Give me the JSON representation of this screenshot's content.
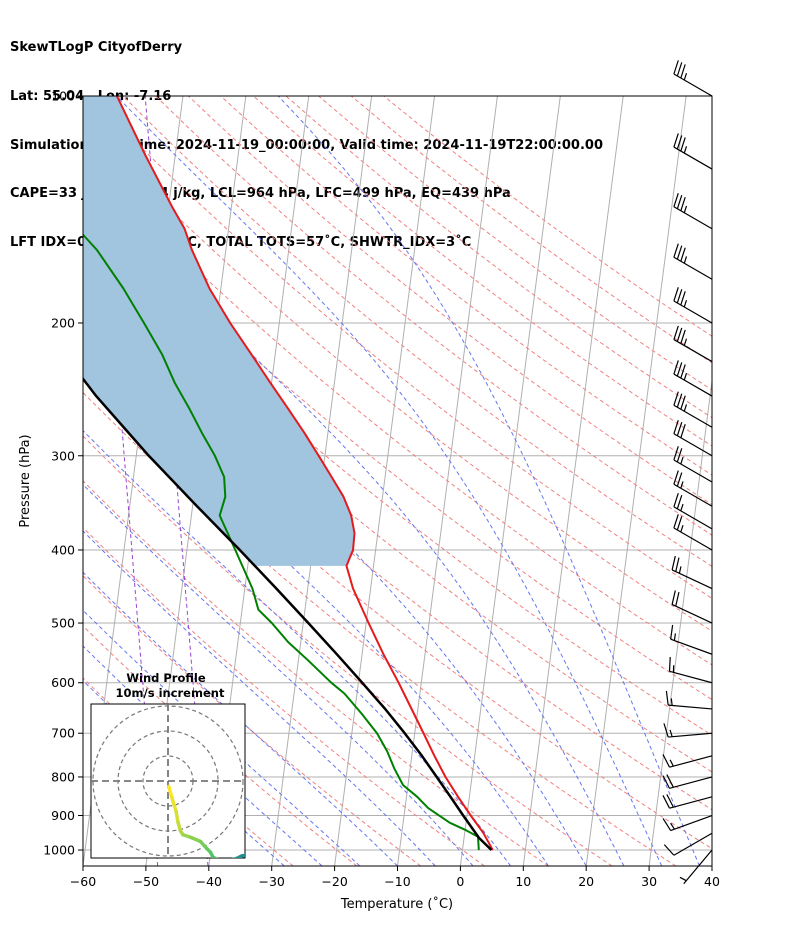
{
  "header": {
    "line1": "SkewTLogP CityofDerry",
    "line2": "Lat: 55.04   Lon: -7.16",
    "line3": "Simulation start time: 2024-11-19_00:00:00, Valid time: 2024-11-19T22:00:00.00",
    "line4": "CAPE=33 j/kg, CIN=-4 j/kg, LCL=964 hPa, LFC=499 hPa, EQ=439 hPa",
    "line5": "LFT IDX=0˚C, K IDX=15˚C, TOTAL TOTS=57˚C, SHWTR_IDX=3˚C"
  },
  "chart_data": {
    "type": "skewt",
    "xlabel": "Temperature (˚C)",
    "ylabel": "Pressure (hPa)",
    "xlim": [
      -60,
      40
    ],
    "ylim": [
      1050,
      100
    ],
    "log_pressure": true,
    "grid": true,
    "x_ticks": [
      "−60",
      "−50",
      "−40",
      "−30",
      "−20",
      "−10",
      "0",
      "10",
      "20",
      "30",
      "40"
    ],
    "y_ticks": [
      "1000",
      "900",
      "800",
      "700",
      "600",
      "500",
      "400",
      "300",
      "200",
      "100"
    ],
    "temperature": {
      "color": "#e41a1c",
      "points": [
        [
          1000,
          4.8
        ],
        [
          950,
          3
        ],
        [
          900,
          0.6
        ],
        [
          850,
          -1.8
        ],
        [
          800,
          -4.2
        ],
        [
          750,
          -6.4
        ],
        [
          700,
          -8.6
        ],
        [
          650,
          -11
        ],
        [
          600,
          -13.6
        ],
        [
          550,
          -16.6
        ],
        [
          500,
          -19.6
        ],
        [
          450,
          -22.8
        ],
        [
          420,
          -24.3
        ],
        [
          400,
          -23.6
        ],
        [
          380,
          -23.7
        ],
        [
          360,
          -24.6
        ],
        [
          340,
          -26.2
        ],
        [
          320,
          -28.5
        ],
        [
          300,
          -31
        ],
        [
          280,
          -33.7
        ],
        [
          260,
          -36.8
        ],
        [
          240,
          -40.2
        ],
        [
          220,
          -43.8
        ],
        [
          200,
          -47.8
        ],
        [
          180,
          -51.8
        ],
        [
          160,
          -55.4
        ],
        [
          150,
          -57
        ],
        [
          140,
          -59.5
        ],
        [
          120,
          -64.7
        ],
        [
          100,
          -70.5
        ]
      ]
    },
    "dewpoint": {
      "color": "#008000",
      "points": [
        [
          1000,
          2.6
        ],
        [
          960,
          2.2
        ],
        [
          940,
          0
        ],
        [
          920,
          -2.6
        ],
        [
          880,
          -6.3
        ],
        [
          850,
          -8.3
        ],
        [
          820,
          -10.8
        ],
        [
          780,
          -12.5
        ],
        [
          740,
          -14
        ],
        [
          700,
          -16
        ],
        [
          660,
          -18.8
        ],
        [
          620,
          -22
        ],
        [
          600,
          -24.3
        ],
        [
          560,
          -28.5
        ],
        [
          530,
          -32
        ],
        [
          500,
          -35
        ],
        [
          480,
          -37.4
        ],
        [
          450,
          -38.8
        ],
        [
          400,
          -42.3
        ],
        [
          360,
          -45.5
        ],
        [
          340,
          -45
        ],
        [
          320,
          -45.6
        ],
        [
          300,
          -47.5
        ],
        [
          280,
          -50
        ],
        [
          260,
          -52.5
        ],
        [
          240,
          -55.4
        ],
        [
          220,
          -58
        ],
        [
          200,
          -61.5
        ],
        [
          180,
          -65.5
        ],
        [
          160,
          -70.5
        ],
        [
          150,
          -74
        ],
        [
          140,
          -75
        ],
        [
          120,
          -76.5
        ],
        [
          100,
          -78.5
        ]
      ]
    },
    "parcel": {
      "color": "#000000",
      "points": [
        [
          1000,
          4.6
        ],
        [
          964,
          2.4
        ],
        [
          900,
          -0.6
        ],
        [
          850,
          -3
        ],
        [
          800,
          -5.6
        ],
        [
          750,
          -8.4
        ],
        [
          700,
          -11.6
        ],
        [
          650,
          -15.2
        ],
        [
          600,
          -19.4
        ],
        [
          550,
          -24
        ],
        [
          500,
          -29.2
        ],
        [
          450,
          -35
        ],
        [
          400,
          -41.6
        ],
        [
          350,
          -49.3
        ],
        [
          300,
          -58
        ],
        [
          250,
          -67.6
        ],
        [
          200,
          -78
        ],
        [
          150,
          -89.5
        ],
        [
          100,
          -104
        ]
      ]
    },
    "cape_fill_color": "#a1c4df",
    "wind_barbs": {
      "pressures": [
        100,
        125,
        150,
        175,
        200,
        225,
        250,
        275,
        300,
        325,
        350,
        375,
        400,
        450,
        500,
        550,
        600,
        650,
        700,
        750,
        800,
        850,
        900,
        950,
        1000
      ],
      "speed_kt": [
        35,
        35,
        35,
        35,
        35,
        35,
        35,
        35,
        30,
        25,
        25,
        25,
        25,
        25,
        20,
        15,
        15,
        15,
        15,
        15,
        20,
        20,
        15,
        10,
        5
      ],
      "dir_deg": [
        300,
        300,
        300,
        300,
        300,
        300,
        300,
        300,
        300,
        300,
        300,
        300,
        300,
        295,
        295,
        290,
        285,
        275,
        265,
        255,
        255,
        255,
        250,
        240,
        220
      ]
    },
    "inset": {
      "title": "Wind Profile",
      "subtitle": "10m/s increment",
      "ring_step": 10,
      "hodograph": [
        [
          0.3,
          -2.2
        ],
        [
          1.5,
          -6.5
        ],
        [
          3.2,
          -12
        ],
        [
          4,
          -16.5
        ],
        [
          5,
          -20
        ],
        [
          6,
          -21.5
        ],
        [
          9,
          -22.5
        ],
        [
          13,
          -24.2
        ],
        [
          15.5,
          -27
        ],
        [
          17,
          -28.5
        ],
        [
          18,
          -30.5
        ],
        [
          20,
          -31.5
        ],
        [
          20.7,
          -33
        ],
        [
          22,
          -34
        ],
        [
          23.5,
          -33
        ],
        [
          25.5,
          -31.5
        ],
        [
          27.5,
          -31
        ],
        [
          29.5,
          -30
        ],
        [
          32,
          -29.5
        ],
        [
          34,
          -29.5
        ],
        [
          36.5,
          -30
        ],
        [
          38.5,
          -30.5
        ],
        [
          40.5,
          -31
        ],
        [
          42.5,
          -31.5
        ],
        [
          44.5,
          -32
        ],
        [
          46,
          -32.5
        ],
        [
          47.5,
          -33
        ],
        [
          49,
          -33.5
        ],
        [
          50.5,
          -34
        ],
        [
          52.5,
          -34.2
        ],
        [
          54.5,
          -34
        ],
        [
          56.5,
          -34
        ],
        [
          58,
          -34
        ],
        [
          59.5,
          -34.3
        ],
        [
          61,
          -33.8
        ]
      ]
    }
  }
}
